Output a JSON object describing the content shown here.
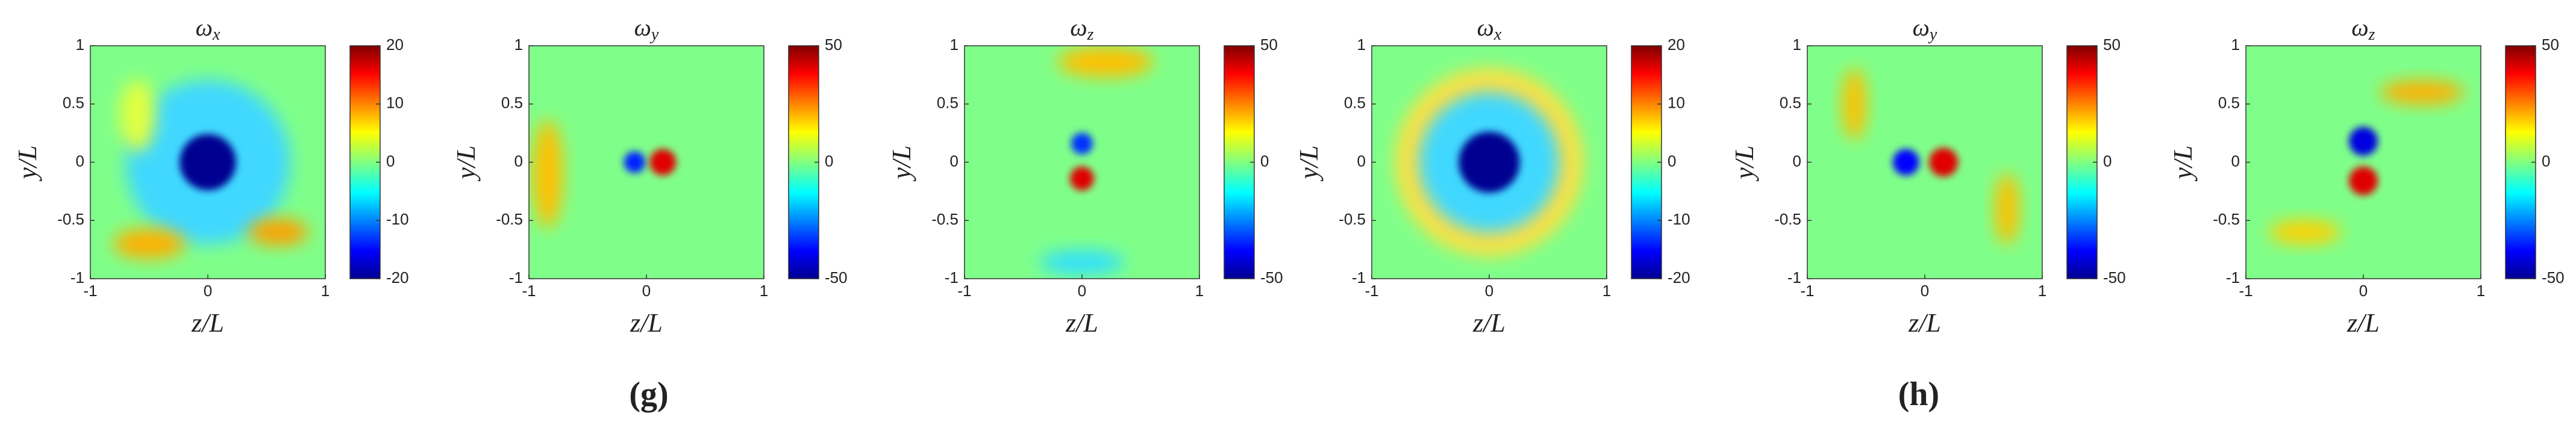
{
  "chart_data": [
    {
      "type": "heatmap",
      "title": "ω",
      "title_subscript": "x",
      "xlabel": "z/L",
      "ylabel": "y/L",
      "xlim": [
        -1,
        1
      ],
      "xticks": [
        -1,
        0,
        1
      ],
      "ylim": [
        -1,
        1
      ],
      "yticks": [
        -1,
        -0.5,
        0,
        0.5,
        1
      ],
      "colormap": "jet",
      "colorbar": {
        "lim": [
          -20,
          20
        ],
        "ticks": [
          -20,
          -10,
          0,
          10,
          20
        ]
      }
    },
    {
      "type": "heatmap",
      "title": "ω",
      "title_subscript": "y",
      "xlabel": "z/L",
      "ylabel": "y/L",
      "xlim": [
        -1,
        1
      ],
      "xticks": [
        -1,
        0,
        1
      ],
      "ylim": [
        -1,
        1
      ],
      "yticks": [
        -1,
        -0.5,
        0,
        0.5,
        1
      ],
      "colormap": "jet",
      "colorbar": {
        "lim": [
          -50,
          50
        ],
        "ticks": [
          -50,
          0,
          50
        ]
      }
    },
    {
      "type": "heatmap",
      "title": "ω",
      "title_subscript": "z",
      "xlabel": "z/L",
      "ylabel": "y/L",
      "xlim": [
        -1,
        1
      ],
      "xticks": [
        -1,
        0,
        1
      ],
      "ylim": [
        -1,
        1
      ],
      "yticks": [
        -1,
        -0.5,
        0,
        0.5,
        1
      ],
      "colormap": "jet",
      "colorbar": {
        "lim": [
          -50,
          50
        ],
        "ticks": [
          -50,
          0,
          50
        ]
      }
    },
    {
      "type": "heatmap",
      "title": "ω",
      "title_subscript": "x",
      "xlabel": "z/L",
      "ylabel": "y/L",
      "xlim": [
        -1,
        1
      ],
      "xticks": [
        -1,
        0,
        1
      ],
      "ylim": [
        -1,
        1
      ],
      "yticks": [
        -1,
        -0.5,
        0,
        0.5,
        1
      ],
      "colormap": "jet",
      "colorbar": {
        "lim": [
          -20,
          20
        ],
        "ticks": [
          -20,
          -10,
          0,
          10,
          20
        ]
      }
    },
    {
      "type": "heatmap",
      "title": "ω",
      "title_subscript": "y",
      "xlabel": "z/L",
      "ylabel": "y/L",
      "xlim": [
        -1,
        1
      ],
      "xticks": [
        -1,
        0,
        1
      ],
      "ylim": [
        -1,
        1
      ],
      "yticks": [
        -1,
        -0.5,
        0,
        0.5,
        1
      ],
      "colormap": "jet",
      "colorbar": {
        "lim": [
          -50,
          50
        ],
        "ticks": [
          -50,
          0,
          50
        ]
      }
    },
    {
      "type": "heatmap",
      "title": "ω",
      "title_subscript": "z",
      "xlabel": "z/L",
      "ylabel": "y/L",
      "xlim": [
        -1,
        1
      ],
      "xticks": [
        -1,
        0,
        1
      ],
      "ylim": [
        -1,
        1
      ],
      "yticks": [
        -1,
        -0.5,
        0,
        0.5,
        1
      ],
      "colormap": "jet",
      "colorbar": {
        "lim": [
          -50,
          50
        ],
        "ticks": [
          -50,
          0,
          50
        ]
      }
    }
  ],
  "panel_labels": [
    "(g)",
    "(h)"
  ]
}
